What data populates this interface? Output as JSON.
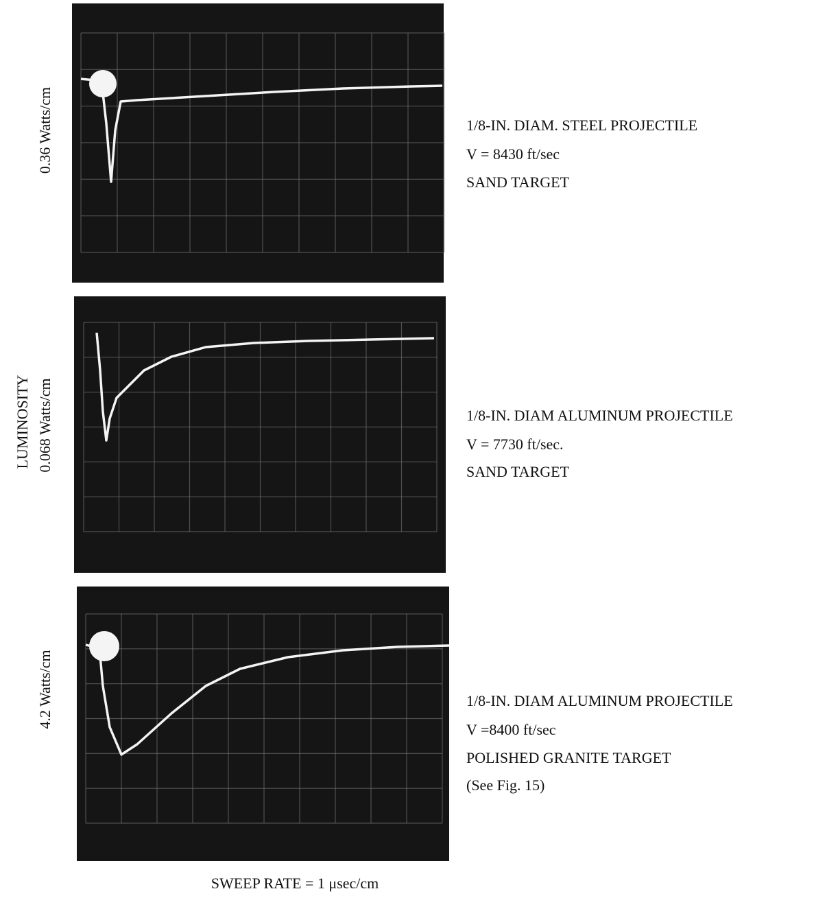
{
  "y_axis_label": "LUMINOSITY",
  "x_axis_label": "SWEEP RATE = 1 μsec/cm",
  "panels": [
    {
      "scale": "0.36 Watts/cm",
      "caption": [
        "1/8-IN. DIAM. STEEL PROJECTILE",
        "V = 8430 ft/sec",
        "SAND TARGET"
      ]
    },
    {
      "scale": "0.068 Watts/cm",
      "caption": [
        "1/8-IN. DIAM ALUMINUM PROJECTILE",
        "V = 7730 ft/sec.",
        "SAND TARGET"
      ]
    },
    {
      "scale": "4.2 Watts/cm",
      "caption": [
        "1/8-IN. DIAM ALUMINUM PROJECTILE",
        "V =8400 ft/sec",
        "POLISHED GRANITE TARGET",
        "(See Fig. 15)"
      ]
    }
  ]
}
